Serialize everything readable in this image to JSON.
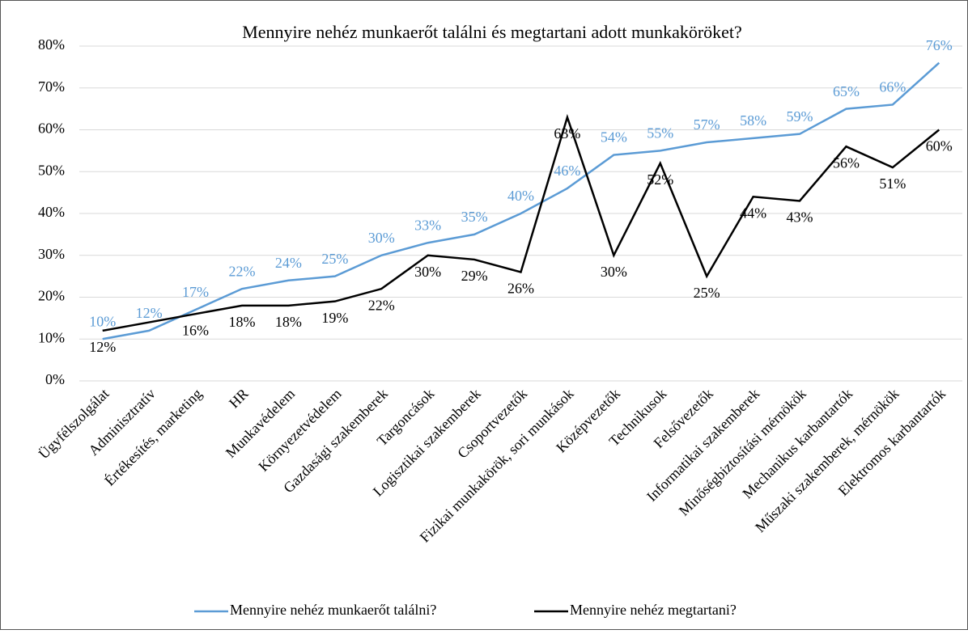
{
  "chart_data": {
    "type": "line",
    "title": "Mennyire nehéz munkaerőt találni és megtartani adott munkaköröket?",
    "categories": [
      "Ügyfélszolgálat",
      "Adminisztratív",
      "Értékesítés, marketing",
      "HR",
      "Munkavédelem",
      "Környezetvédelem",
      "Gazdasági szakemberek",
      "Targoncások",
      "Logisztikai szakemberek",
      "Csoportvezetők",
      "Fizikai munkakörök, sori munkások",
      "Középvezetők",
      "Technikusok",
      "Felsővezetők",
      "Informatikai szakemberek",
      "Minőségbiztosítási mérnökök",
      "Mechanikus karbantartók",
      "Műszaki szakemberek, mérnökök",
      "Elektromos karbantartók"
    ],
    "series": [
      {
        "name": "Mennyire nehéz munkaerőt találni?",
        "color": "#5b9bd5",
        "values": [
          10,
          12,
          17,
          22,
          24,
          25,
          30,
          33,
          35,
          40,
          46,
          54,
          55,
          57,
          58,
          59,
          65,
          66,
          76
        ],
        "value_labels": [
          "10%",
          "12%",
          "17%",
          "22%",
          "24%",
          "25%",
          "30%",
          "33%",
          "35%",
          "40%",
          "46%",
          "54%",
          "55%",
          "57%",
          "58%",
          "59%",
          "65%",
          "66%",
          "76%"
        ]
      },
      {
        "name": "Mennyire nehéz megtartani?",
        "color": "#000000",
        "values": [
          12,
          14,
          16,
          18,
          18,
          19,
          22,
          30,
          29,
          26,
          63,
          30,
          52,
          25,
          44,
          43,
          56,
          51,
          60
        ],
        "value_labels": [
          "12%",
          null,
          "16%",
          "18%",
          "18%",
          "19%",
          "22%",
          "30%",
          "29%",
          "26%",
          "63%",
          "30%",
          "52%",
          "25%",
          "44%",
          "43%",
          "56%",
          "51%",
          "60%"
        ]
      }
    ],
    "ylim": [
      0,
      80
    ],
    "yticks": [
      {
        "value": 0,
        "label": "0%"
      },
      {
        "value": 10,
        "label": "10%"
      },
      {
        "value": 20,
        "label": "20%"
      },
      {
        "value": 30,
        "label": "30%"
      },
      {
        "value": 40,
        "label": "40%"
      },
      {
        "value": 50,
        "label": "50%"
      },
      {
        "value": 60,
        "label": "60%"
      },
      {
        "value": 70,
        "label": "70%"
      },
      {
        "value": 80,
        "label": "80%"
      }
    ],
    "grid": true,
    "legend": "bottom"
  }
}
